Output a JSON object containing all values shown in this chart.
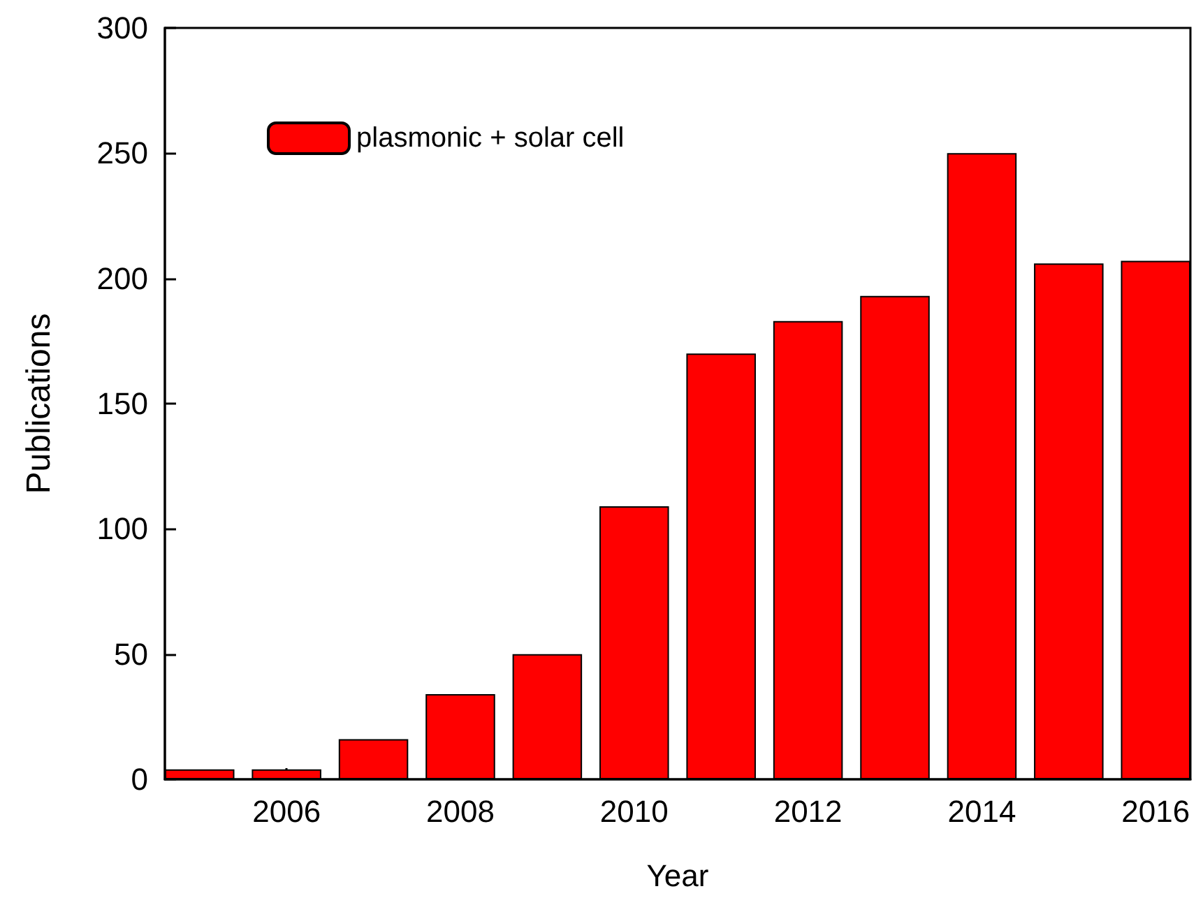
{
  "chart_data": {
    "type": "bar",
    "xlabel": "Year",
    "ylabel": "Publications",
    "x": [
      2005,
      2006,
      2007,
      2008,
      2009,
      2010,
      2011,
      2012,
      2013,
      2014,
      2015,
      2016
    ],
    "series": [
      {
        "name": "plasmonic + solar cell",
        "color": "#ff0000",
        "values": [
          4,
          4,
          16,
          34,
          50,
          109,
          170,
          183,
          193,
          250,
          206,
          207
        ]
      }
    ],
    "xlim": [
      2004.6,
      2016.4
    ],
    "xticks": [
      2006,
      2008,
      2010,
      2012,
      2014,
      2016
    ],
    "ylim": [
      0,
      300
    ],
    "yticks": [
      0,
      50,
      100,
      150,
      200,
      250,
      300
    ],
    "grid": false,
    "legend": "top left"
  }
}
